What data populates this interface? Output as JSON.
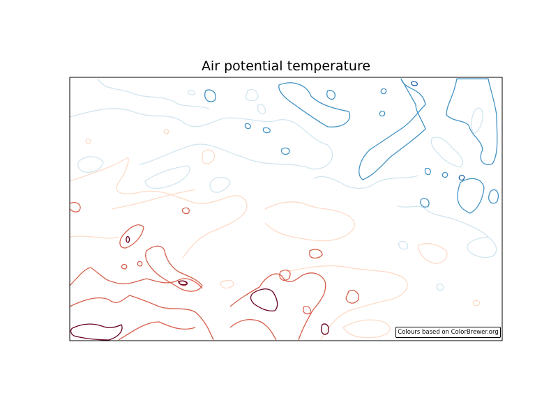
{
  "chart_data": {
    "type": "contour",
    "title": "Air potential temperature",
    "xlabel": "",
    "ylabel": "",
    "grid": false,
    "colormap": "RdBu_r",
    "levels": [
      {
        "name": "level-1",
        "color": "#2166ac"
      },
      {
        "name": "level-2",
        "color": "#4393c3"
      },
      {
        "name": "level-3",
        "color": "#d1e5f0"
      },
      {
        "name": "level-4",
        "color": "#fddbc7"
      },
      {
        "name": "level-5",
        "color": "#d6604d"
      },
      {
        "name": "level-6",
        "color": "#67001f"
      }
    ],
    "annotations": [
      {
        "text": "Colours based on ColorBrewer.org",
        "location": "lower-right"
      }
    ]
  },
  "credit": {
    "text": "Colours based on ColorBrewer.org"
  }
}
